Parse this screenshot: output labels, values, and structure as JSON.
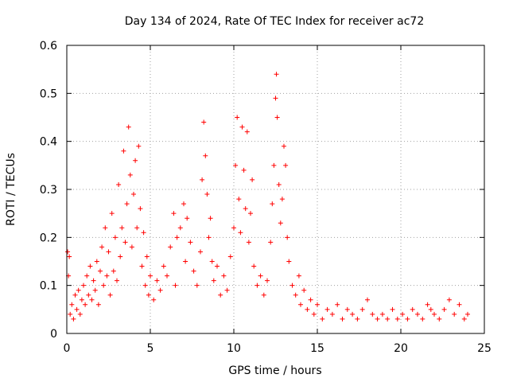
{
  "chart_data": {
    "type": "scatter",
    "title": "Day 134 of 2024, Rate Of TEC Index for receiver ac72",
    "xlabel": "GPS time / hours",
    "ylabel": "ROTI / TECUs",
    "xlim": [
      0,
      25
    ],
    "ylim": [
      0,
      0.6
    ],
    "xticks": [
      0,
      5,
      10,
      15,
      20,
      25
    ],
    "yticks": [
      0,
      0.1,
      0.2,
      0.3,
      0.4,
      0.5,
      0.6
    ],
    "xtick_labels": [
      "0",
      "5",
      "10",
      "15",
      "20",
      "25"
    ],
    "ytick_labels": [
      "0",
      "0.1",
      "0.2",
      "0.3",
      "0.4",
      "0.5",
      "0.6"
    ],
    "grid": true,
    "marker": "plus",
    "color": "#ff0000",
    "series": [
      {
        "name": "ROTI",
        "points": [
          [
            0.05,
            0.17
          ],
          [
            0.1,
            0.12
          ],
          [
            0.15,
            0.16
          ],
          [
            0.2,
            0.04
          ],
          [
            0.3,
            0.06
          ],
          [
            0.4,
            0.03
          ],
          [
            0.5,
            0.08
          ],
          [
            0.6,
            0.05
          ],
          [
            0.7,
            0.09
          ],
          [
            0.8,
            0.04
          ],
          [
            0.9,
            0.07
          ],
          [
            1.0,
            0.1
          ],
          [
            1.1,
            0.06
          ],
          [
            1.2,
            0.12
          ],
          [
            1.3,
            0.08
          ],
          [
            1.4,
            0.14
          ],
          [
            1.5,
            0.07
          ],
          [
            1.6,
            0.11
          ],
          [
            1.7,
            0.09
          ],
          [
            1.8,
            0.15
          ],
          [
            1.9,
            0.06
          ],
          [
            2.0,
            0.13
          ],
          [
            2.1,
            0.18
          ],
          [
            2.2,
            0.1
          ],
          [
            2.3,
            0.22
          ],
          [
            2.4,
            0.12
          ],
          [
            2.5,
            0.17
          ],
          [
            2.6,
            0.08
          ],
          [
            2.7,
            0.25
          ],
          [
            2.8,
            0.13
          ],
          [
            2.9,
            0.2
          ],
          [
            3.0,
            0.11
          ],
          [
            3.1,
            0.31
          ],
          [
            3.2,
            0.16
          ],
          [
            3.3,
            0.22
          ],
          [
            3.4,
            0.38
          ],
          [
            3.5,
            0.19
          ],
          [
            3.6,
            0.27
          ],
          [
            3.7,
            0.43
          ],
          [
            3.8,
            0.33
          ],
          [
            3.9,
            0.18
          ],
          [
            4.0,
            0.29
          ],
          [
            4.1,
            0.36
          ],
          [
            4.2,
            0.22
          ],
          [
            4.3,
            0.39
          ],
          [
            4.4,
            0.26
          ],
          [
            4.5,
            0.14
          ],
          [
            4.6,
            0.21
          ],
          [
            4.7,
            0.1
          ],
          [
            4.8,
            0.16
          ],
          [
            4.9,
            0.08
          ],
          [
            5.0,
            0.12
          ],
          [
            5.2,
            0.07
          ],
          [
            5.4,
            0.11
          ],
          [
            5.6,
            0.09
          ],
          [
            5.8,
            0.14
          ],
          [
            6.0,
            0.12
          ],
          [
            6.2,
            0.18
          ],
          [
            6.4,
            0.25
          ],
          [
            6.5,
            0.1
          ],
          [
            6.6,
            0.2
          ],
          [
            6.8,
            0.22
          ],
          [
            7.0,
            0.27
          ],
          [
            7.1,
            0.15
          ],
          [
            7.2,
            0.24
          ],
          [
            7.4,
            0.19
          ],
          [
            7.6,
            0.13
          ],
          [
            7.8,
            0.1
          ],
          [
            8.0,
            0.17
          ],
          [
            8.1,
            0.32
          ],
          [
            8.2,
            0.44
          ],
          [
            8.3,
            0.37
          ],
          [
            8.4,
            0.29
          ],
          [
            8.5,
            0.2
          ],
          [
            8.6,
            0.24
          ],
          [
            8.7,
            0.15
          ],
          [
            8.8,
            0.11
          ],
          [
            9.0,
            0.14
          ],
          [
            9.2,
            0.08
          ],
          [
            9.4,
            0.12
          ],
          [
            9.6,
            0.09
          ],
          [
            9.8,
            0.16
          ],
          [
            10.0,
            0.22
          ],
          [
            10.1,
            0.35
          ],
          [
            10.2,
            0.45
          ],
          [
            10.3,
            0.28
          ],
          [
            10.4,
            0.21
          ],
          [
            10.5,
            0.43
          ],
          [
            10.6,
            0.34
          ],
          [
            10.7,
            0.26
          ],
          [
            10.8,
            0.42
          ],
          [
            10.9,
            0.19
          ],
          [
            11.0,
            0.25
          ],
          [
            11.1,
            0.32
          ],
          [
            11.2,
            0.14
          ],
          [
            11.4,
            0.1
          ],
          [
            11.6,
            0.12
          ],
          [
            11.8,
            0.08
          ],
          [
            12.0,
            0.11
          ],
          [
            12.2,
            0.19
          ],
          [
            12.3,
            0.27
          ],
          [
            12.4,
            0.35
          ],
          [
            12.5,
            0.49
          ],
          [
            12.55,
            0.54
          ],
          [
            12.6,
            0.45
          ],
          [
            12.7,
            0.31
          ],
          [
            12.8,
            0.23
          ],
          [
            12.9,
            0.28
          ],
          [
            13.0,
            0.39
          ],
          [
            13.1,
            0.35
          ],
          [
            13.2,
            0.2
          ],
          [
            13.3,
            0.15
          ],
          [
            13.5,
            0.1
          ],
          [
            13.7,
            0.08
          ],
          [
            13.9,
            0.12
          ],
          [
            14.0,
            0.06
          ],
          [
            14.2,
            0.09
          ],
          [
            14.4,
            0.05
          ],
          [
            14.6,
            0.07
          ],
          [
            14.8,
            0.04
          ],
          [
            15.0,
            0.06
          ],
          [
            15.3,
            0.03
          ],
          [
            15.6,
            0.05
          ],
          [
            15.9,
            0.04
          ],
          [
            16.2,
            0.06
          ],
          [
            16.5,
            0.03
          ],
          [
            16.8,
            0.05
          ],
          [
            17.1,
            0.04
          ],
          [
            17.4,
            0.03
          ],
          [
            17.7,
            0.05
          ],
          [
            18.0,
            0.07
          ],
          [
            18.3,
            0.04
          ],
          [
            18.6,
            0.03
          ],
          [
            18.9,
            0.04
          ],
          [
            19.2,
            0.03
          ],
          [
            19.5,
            0.05
          ],
          [
            19.8,
            0.03
          ],
          [
            20.1,
            0.04
          ],
          [
            20.4,
            0.03
          ],
          [
            20.7,
            0.05
          ],
          [
            21.0,
            0.04
          ],
          [
            21.3,
            0.03
          ],
          [
            21.6,
            0.06
          ],
          [
            21.8,
            0.05
          ],
          [
            22.0,
            0.04
          ],
          [
            22.3,
            0.03
          ],
          [
            22.6,
            0.05
          ],
          [
            22.9,
            0.07
          ],
          [
            23.2,
            0.04
          ],
          [
            23.5,
            0.06
          ],
          [
            23.8,
            0.03
          ],
          [
            24.0,
            0.04
          ]
        ]
      }
    ]
  }
}
